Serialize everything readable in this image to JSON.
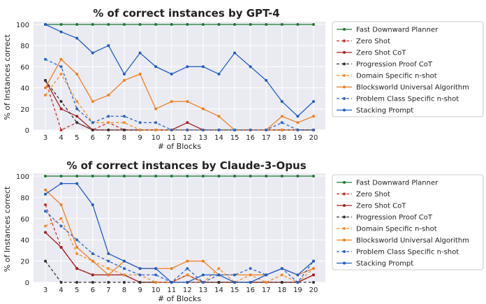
{
  "series_styles": [
    {
      "color": "#1f7a33",
      "dash": "solid"
    },
    {
      "color": "#c6312c",
      "dash": "dashed"
    },
    {
      "color": "#a31f1f",
      "dash": "solid"
    },
    {
      "color": "#333333",
      "dash": "dashed"
    },
    {
      "color": "#f28e2b",
      "dash": "dashed"
    },
    {
      "color": "#f07f1f",
      "dash": "solid"
    },
    {
      "color": "#2e66c4",
      "dash": "dashed"
    },
    {
      "color": "#1f5cc4",
      "dash": "solid"
    }
  ],
  "chart_data": [
    {
      "type": "line",
      "title": "% of correct instances by GPT-4",
      "xlabel": "# of Blocks",
      "ylabel": "% of Instances correct",
      "x": [
        3,
        4,
        5,
        6,
        7,
        8,
        9,
        10,
        11,
        12,
        13,
        14,
        15,
        16,
        17,
        18,
        19,
        20
      ],
      "ylim": [
        0,
        100
      ],
      "yticks": [
        0,
        20,
        40,
        60,
        80,
        100
      ],
      "grid": true,
      "legend_position": "right",
      "series": [
        {
          "name": "Fast Downward Planner",
          "values": [
            100,
            100,
            100,
            100,
            100,
            100,
            100,
            100,
            100,
            100,
            100,
            100,
            100,
            100,
            100,
            100,
            100,
            100
          ]
        },
        {
          "name": "Zero Shot",
          "values": [
            47,
            0,
            7,
            0,
            7,
            0,
            0,
            0,
            0,
            0,
            0,
            0,
            0,
            0,
            0,
            0,
            0,
            0
          ]
        },
        {
          "name": "Zero Shot CoT",
          "values": [
            47,
            20,
            13,
            0,
            0,
            0,
            0,
            0,
            0,
            7,
            0,
            0,
            0,
            0,
            0,
            0,
            0,
            0
          ]
        },
        {
          "name": "Progression Proof CoT",
          "values": [
            47,
            27,
            7,
            0,
            0,
            0,
            0,
            0,
            0,
            0,
            0,
            0,
            0,
            0,
            0,
            0,
            0,
            0
          ]
        },
        {
          "name": "Domain Specific n-shot",
          "values": [
            33,
            53,
            27,
            7,
            7,
            7,
            0,
            0,
            0,
            0,
            0,
            0,
            0,
            0,
            0,
            0,
            0,
            0
          ]
        },
        {
          "name": "Blocksworld Universal Algorithm",
          "values": [
            40,
            67,
            53,
            27,
            33,
            47,
            53,
            20,
            27,
            27,
            20,
            13,
            0,
            0,
            0,
            13,
            7,
            13
          ]
        },
        {
          "name": "Problem Class Specific n-shot",
          "values": [
            67,
            60,
            20,
            7,
            13,
            13,
            7,
            7,
            0,
            0,
            0,
            0,
            0,
            0,
            0,
            7,
            0,
            0
          ]
        },
        {
          "name": "Stacking Prompt",
          "values": [
            100,
            93,
            87,
            73,
            80,
            53,
            73,
            60,
            53,
            60,
            60,
            53,
            73,
            60,
            47,
            27,
            13,
            27
          ]
        }
      ]
    },
    {
      "type": "line",
      "title": "% of correct instances by Claude-3-Opus",
      "xlabel": "# of Blocks",
      "ylabel": "% of Instances correct",
      "x": [
        3,
        4,
        5,
        6,
        7,
        8,
        9,
        10,
        11,
        12,
        13,
        14,
        15,
        16,
        17,
        18,
        19,
        20
      ],
      "ylim": [
        0,
        100
      ],
      "yticks": [
        0,
        20,
        40,
        60,
        80,
        100
      ],
      "grid": true,
      "legend_position": "right",
      "series": [
        {
          "name": "Fast Downward Planner",
          "values": [
            100,
            100,
            100,
            100,
            100,
            100,
            100,
            100,
            100,
            100,
            100,
            100,
            100,
            100,
            100,
            100,
            100,
            100
          ]
        },
        {
          "name": "Zero Shot",
          "values": [
            73,
            33,
            13,
            7,
            7,
            7,
            0,
            0,
            0,
            0,
            0,
            0,
            0,
            0,
            0,
            0,
            0,
            7
          ]
        },
        {
          "name": "Zero Shot CoT",
          "values": [
            47,
            33,
            13,
            7,
            7,
            7,
            0,
            0,
            0,
            7,
            0,
            0,
            0,
            0,
            0,
            0,
            0,
            7
          ]
        },
        {
          "name": "Progression Proof CoT",
          "values": [
            20,
            0,
            0,
            0,
            0,
            0,
            0,
            0,
            0,
            0,
            0,
            0,
            0,
            0,
            0,
            0,
            0,
            0
          ]
        },
        {
          "name": "Domain Specific n-shot",
          "values": [
            53,
            60,
            27,
            20,
            13,
            7,
            7,
            0,
            0,
            7,
            0,
            13,
            0,
            7,
            0,
            7,
            0,
            13
          ]
        },
        {
          "name": "Blocksworld Universal Algorithm",
          "values": [
            87,
            73,
            33,
            20,
            7,
            20,
            13,
            13,
            13,
            20,
            20,
            7,
            7,
            7,
            7,
            13,
            7,
            13
          ]
        },
        {
          "name": "Problem Class Specific n-shot",
          "values": [
            67,
            53,
            40,
            27,
            20,
            13,
            7,
            7,
            0,
            13,
            0,
            7,
            7,
            13,
            7,
            13,
            0,
            20
          ]
        },
        {
          "name": "Stacking Prompt",
          "values": [
            83,
            93,
            93,
            73,
            27,
            20,
            13,
            13,
            0,
            0,
            7,
            7,
            0,
            0,
            7,
            13,
            7,
            20
          ]
        }
      ]
    }
  ]
}
